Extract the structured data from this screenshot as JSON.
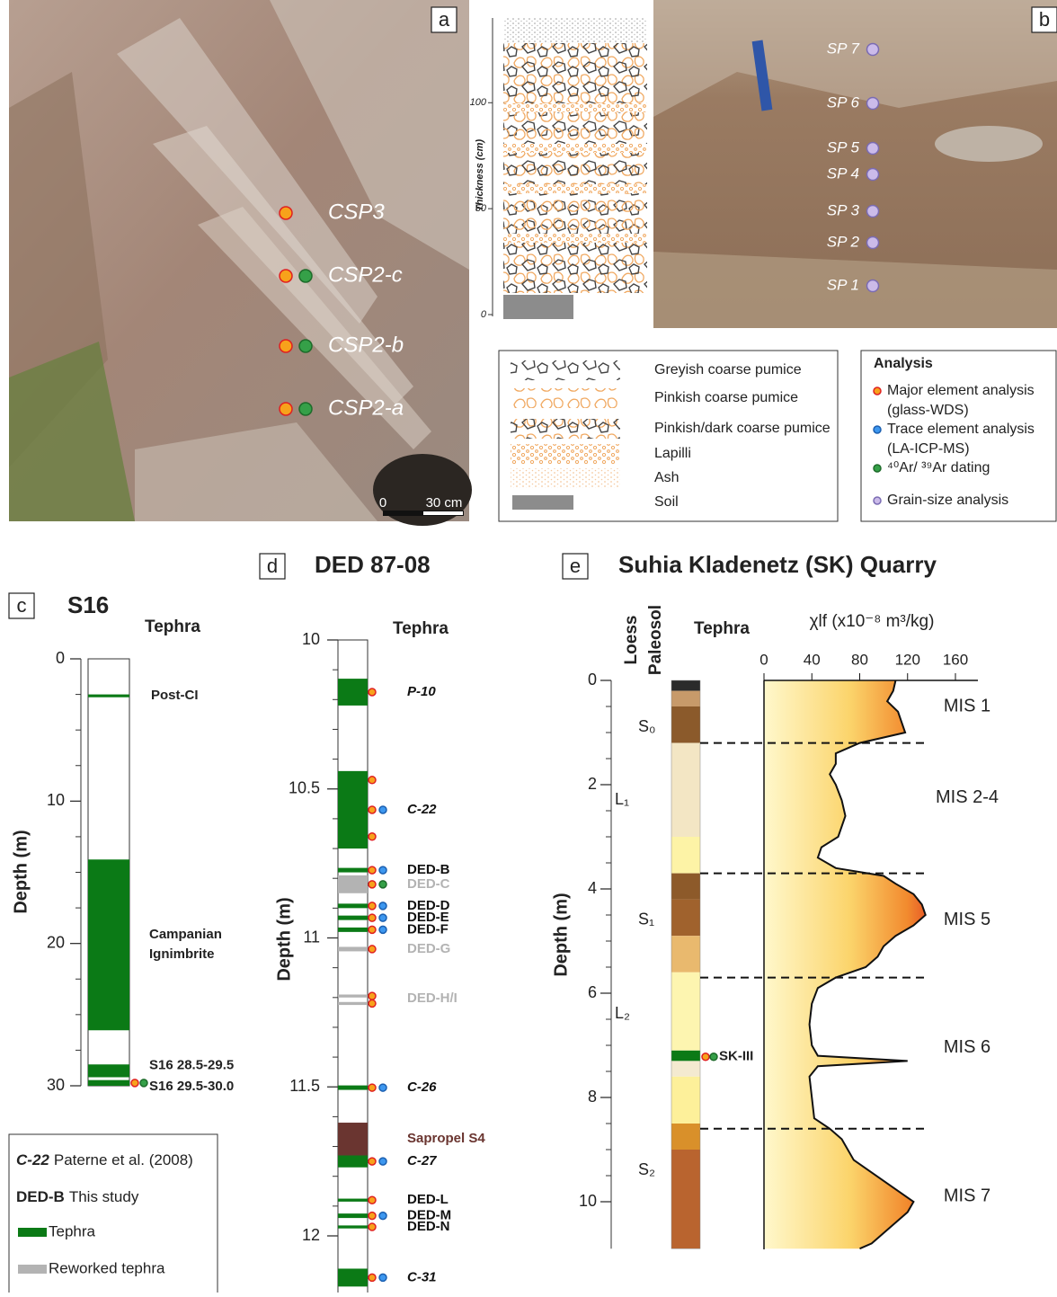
{
  "panel_a": {
    "label": "a",
    "samples": [
      "CSP3",
      "CSP2-c",
      "CSP2-b",
      "CSP2-a"
    ],
    "scale": [
      "0",
      "30 cm"
    ]
  },
  "panel_b": {
    "label": "b",
    "axis_label": "Thickness (cm)",
    "ylim": [
      0,
      140
    ],
    "yticks": [
      0,
      50,
      100
    ],
    "samples": [
      "SP 7",
      "SP 6",
      "SP 5",
      "SP 4",
      "SP 3",
      "SP 2",
      "SP 1"
    ],
    "legend": [
      "Greyish coarse pumice",
      "Pinkish coarse pumice",
      "Pinkish/dark coarse pumice",
      "Lapilli",
      "Ash",
      "Soil"
    ],
    "analysis": {
      "title": "Analysis",
      "items": [
        [
          "Major element analysis",
          "(glass-WDS)"
        ],
        [
          "Trace element analysis",
          "(LA-ICP-MS)"
        ],
        [
          "⁴⁰Ar/ ³⁹Ar dating"
        ],
        [
          "Grain-size analysis"
        ]
      ]
    }
  },
  "panel_c": {
    "label": "c",
    "title": "S16",
    "column_title": "Tephra",
    "axis_label": "Depth (m)",
    "ylim": [
      0,
      30
    ],
    "yticks": [
      0,
      10,
      20,
      30
    ],
    "layers": [
      {
        "name": [
          "Post-CI"
        ],
        "top": 2.5,
        "bottom": 2.7,
        "kind": "tephra"
      },
      {
        "name": [
          "Campanian",
          "Ignimbrite"
        ],
        "top": 14.1,
        "bottom": 26.1,
        "kind": "tephra"
      },
      {
        "name": [
          "S16 28.5-29.5"
        ],
        "top": 28.5,
        "bottom": 29.4,
        "kind": "tephra"
      },
      {
        "name": [
          "S16 29.5-30.0"
        ],
        "top": 29.6,
        "bottom": 30.0,
        "kind": "tephra"
      }
    ]
  },
  "panel_d": {
    "label": "d",
    "title": "DED 87-08",
    "column_title": "Tephra",
    "axis_label": "Depth (m)",
    "ylim": [
      10,
      12.2
    ],
    "yticks": [
      10,
      10.5,
      11,
      11.5,
      12
    ],
    "layers": [
      {
        "name": "P-10",
        "top": 10.13,
        "bottom": 10.22,
        "kind": "tephra",
        "source": 0
      },
      {
        "name": "C-22",
        "top": 10.44,
        "bottom": 10.7,
        "kind": "tephra",
        "source": 0
      },
      {
        "name": "DED-B",
        "top": 10.765,
        "bottom": 10.78,
        "kind": "tephra",
        "source": 1
      },
      {
        "name": "DED-C",
        "top": 10.79,
        "bottom": 10.85,
        "kind": "reworked",
        "source": 1
      },
      {
        "name": "DED-D",
        "top": 10.885,
        "bottom": 10.9,
        "kind": "tephra",
        "source": 1
      },
      {
        "name": "DED-E",
        "top": 10.925,
        "bottom": 10.94,
        "kind": "tephra",
        "source": 1
      },
      {
        "name": "DED-F",
        "top": 10.965,
        "bottom": 10.98,
        "kind": "tephra",
        "source": 1
      },
      {
        "name": "DED-G",
        "top": 11.03,
        "bottom": 11.045,
        "kind": "reworked",
        "source": 1
      },
      {
        "name": "DED-H/I",
        "top": 11.19,
        "bottom": 11.2,
        "kind": "reworked",
        "source": 1
      },
      {
        "name": null,
        "top": 11.215,
        "bottom": 11.225,
        "kind": "reworked",
        "source": 1
      },
      {
        "name": "C-26",
        "top": 11.495,
        "bottom": 11.51,
        "kind": "tephra",
        "source": 0
      },
      {
        "name": "Sapropel S4",
        "top": 11.62,
        "bottom": 11.73,
        "kind": "sapropel",
        "source": null
      },
      {
        "name": "C-27",
        "top": 11.73,
        "bottom": 11.77,
        "kind": "tephra",
        "source": 0
      },
      {
        "name": "DED-L",
        "top": 11.875,
        "bottom": 11.885,
        "kind": "tephra",
        "source": 1
      },
      {
        "name": "DED-M",
        "top": 11.925,
        "bottom": 11.94,
        "kind": "tephra",
        "source": 1
      },
      {
        "name": "DED-N",
        "top": 11.965,
        "bottom": 11.975,
        "kind": "tephra",
        "source": 1
      },
      {
        "name": "C-31",
        "top": 12.11,
        "bottom": 12.17,
        "kind": "tephra",
        "source": 0
      }
    ]
  },
  "legend_cd": {
    "sources": [
      [
        "C-22",
        "Paterne et al. (2008)"
      ],
      [
        "DED-B",
        "This study"
      ]
    ],
    "kinds": [
      "Tephra",
      "Reworked tephra"
    ]
  },
  "panel_e": {
    "label": "e",
    "title": "Suhia Kladenetz (SK) Quarry",
    "columns": [
      "Loess",
      "Paleosol"
    ],
    "column_title": "Tephra",
    "axis_label": "Depth (m)",
    "ylim": [
      0,
      10.9
    ],
    "yticks": [
      0,
      2,
      4,
      6,
      8,
      10
    ],
    "x_label": "χlf (x10⁻⁸ m³/kg)",
    "xlim": [
      0,
      160
    ],
    "xticks": [
      0,
      40,
      80,
      120,
      160
    ],
    "units": [
      "S₀",
      "L₁",
      "S₁",
      "L₂",
      "S₂"
    ],
    "stages": [
      "MIS 1",
      "MIS 2-4",
      "MIS 5",
      "MIS 6",
      "MIS 7"
    ],
    "boundaries": [
      1.2,
      3.7,
      5.7,
      8.6
    ],
    "tephra": "SK-III",
    "depth": [
      0,
      0.2,
      0.4,
      0.6,
      0.8,
      1.0,
      1.2,
      1.4,
      1.6,
      1.8,
      2.0,
      2.3,
      2.6,
      3.0,
      3.2,
      3.4,
      3.6,
      3.75,
      3.9,
      4.1,
      4.3,
      4.5,
      4.7,
      4.9,
      5.1,
      5.3,
      5.5,
      5.7,
      5.9,
      6.2,
      6.6,
      7.0,
      7.2,
      7.3,
      7.4,
      7.6,
      8.0,
      8.4,
      8.6,
      8.8,
      9.2,
      9.6,
      10.0,
      10.2,
      10.5,
      10.8,
      10.9
    ],
    "chi": [
      110,
      108,
      103,
      112,
      115,
      118,
      80,
      60,
      60,
      55,
      60,
      65,
      68,
      62,
      48,
      45,
      60,
      100,
      110,
      125,
      132,
      135,
      125,
      110,
      100,
      95,
      85,
      60,
      45,
      40,
      38,
      40,
      45,
      120,
      45,
      38,
      40,
      42,
      55,
      65,
      75,
      100,
      125,
      120,
      105,
      90,
      80
    ]
  }
}
